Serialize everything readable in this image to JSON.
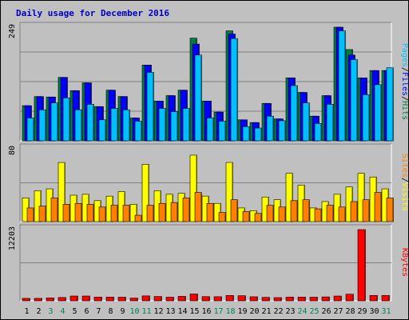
{
  "chart_data": [
    {
      "type": "bar",
      "title": "Daily usage for December 2016",
      "categories": [
        "1",
        "2",
        "3",
        "4",
        "5",
        "6",
        "7",
        "8",
        "9",
        "10",
        "11",
        "12",
        "13",
        "14",
        "15",
        "16",
        "17",
        "18",
        "19",
        "20",
        "21",
        "22",
        "23",
        "24",
        "25",
        "26",
        "27",
        "28",
        "29",
        "30",
        "31"
      ],
      "weekend_days": [
        "3",
        "4",
        "10",
        "11",
        "17",
        "18",
        "24",
        "25",
        "31"
      ],
      "ylim": [
        0,
        249
      ],
      "max_label": "249",
      "legend": [
        "Pages",
        "/",
        "Files",
        "/",
        "Hits"
      ],
      "series": [
        {
          "name": "Hits",
          "color": "#008040",
          "values": [
            77,
            97,
            96,
            139,
            110,
            127,
            75,
            111,
            97,
            50,
            166,
            87,
            99,
            111,
            225,
            87,
            63,
            241,
            46,
            40,
            82,
            48,
            138,
            106,
            54,
            99,
            249,
            200,
            138,
            154,
            154
          ]
        },
        {
          "name": "Files",
          "color": "#0000ff",
          "values": [
            77,
            97,
            96,
            139,
            110,
            127,
            75,
            111,
            97,
            50,
            166,
            87,
            99,
            111,
            212,
            87,
            63,
            234,
            46,
            40,
            82,
            48,
            138,
            106,
            54,
            99,
            249,
            188,
            138,
            154,
            154
          ]
        },
        {
          "name": "Pages",
          "color": "#00c0ff",
          "values": [
            50,
            68,
            83,
            94,
            68,
            80,
            46,
            71,
            68,
            43,
            150,
            71,
            64,
            71,
            188,
            50,
            43,
            224,
            31,
            28,
            54,
            44,
            121,
            83,
            38,
            80,
            241,
            178,
            101,
            123,
            160
          ]
        }
      ]
    },
    {
      "type": "bar",
      "ylim": [
        0,
        80
      ],
      "max_label": "80",
      "legend": [
        "Sites",
        "/",
        "Visits"
      ],
      "series": [
        {
          "name": "Visits",
          "color": "#ffff00",
          "values": [
            26,
            34,
            36,
            65,
            29,
            30,
            23,
            28,
            33,
            19,
            63,
            34,
            30,
            31,
            73,
            28,
            20,
            65,
            15,
            12,
            27,
            24,
            53,
            40,
            15,
            22,
            30,
            38,
            53,
            49,
            36
          ]
        },
        {
          "name": "Sites",
          "color": "#ff8000",
          "values": [
            15,
            17,
            26,
            19,
            20,
            19,
            16,
            18,
            18,
            7,
            18,
            20,
            21,
            26,
            32,
            20,
            10,
            24,
            11,
            9,
            18,
            16,
            23,
            24,
            14,
            18,
            16,
            22,
            24,
            32,
            26
          ]
        }
      ]
    },
    {
      "type": "bar",
      "ylim": [
        0,
        12203
      ],
      "max_label": "12203",
      "legend": [
        "KBytes"
      ],
      "series": [
        {
          "name": "KBytes",
          "color": "#ff0000",
          "values": [
            420,
            420,
            500,
            570,
            820,
            820,
            640,
            640,
            620,
            470,
            840,
            740,
            620,
            770,
            1170,
            720,
            700,
            920,
            870,
            690,
            590,
            550,
            640,
            640,
            620,
            670,
            820,
            1130,
            12203,
            920,
            920
          ]
        }
      ]
    }
  ]
}
